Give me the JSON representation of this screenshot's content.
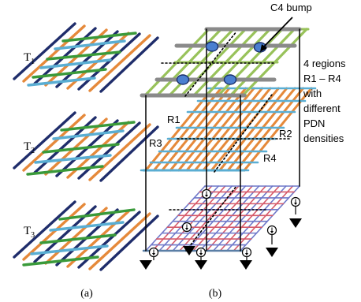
{
  "panel_a": {
    "tier_labels": [
      {
        "prefix": "T",
        "sub": "1"
      },
      {
        "prefix": "T",
        "sub": "2"
      },
      {
        "prefix": "T",
        "sub": "3"
      }
    ],
    "caption": "(a)"
  },
  "panel_b": {
    "bump_label": "C4 bump",
    "annotation_lines": [
      "4 regions",
      "R1 – R4",
      "with",
      "different",
      "PDN",
      "densities"
    ],
    "region_labels": [
      "R1",
      "R2",
      "R3",
      "R4"
    ],
    "caption": "(b)"
  },
  "colors": {
    "navy": "#1f2d6b",
    "orange": "#e5893a",
    "green": "#3a9a3a",
    "sky": "#5aaed3",
    "lime": "#98c25a",
    "gray": "#8a8a8a",
    "red": "#d55a6a",
    "bump_blue": "#4a7fd0"
  }
}
